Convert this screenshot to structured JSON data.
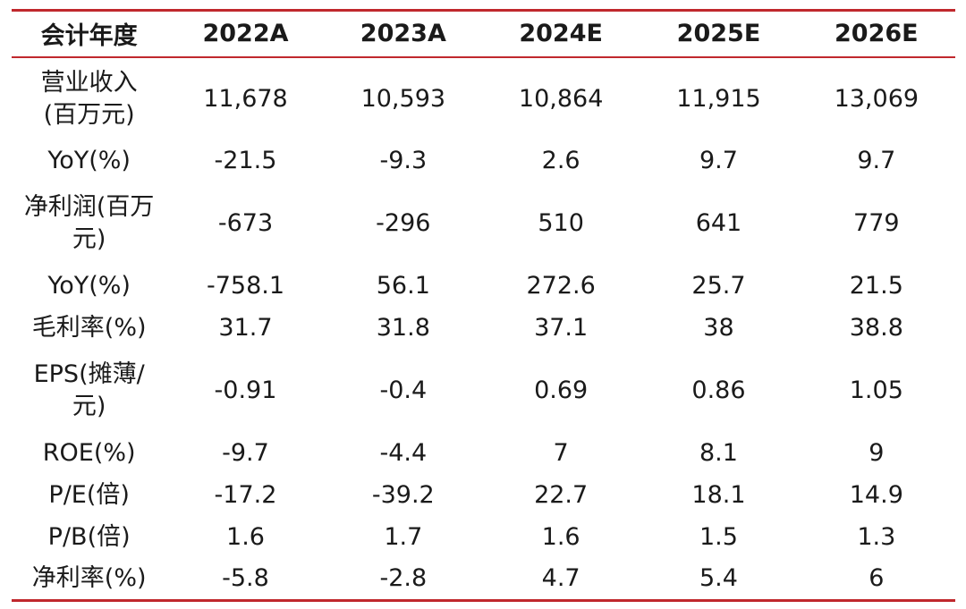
{
  "table": {
    "headers": [
      "会计年度",
      "2022A",
      "2023A",
      "2024E",
      "2025E",
      "2026E"
    ],
    "rows": [
      {
        "label": "营业收入(百万元)",
        "values": [
          "11,678",
          "10,593",
          "10,864",
          "11,915",
          "13,069"
        ]
      },
      {
        "label": "YoY(%)",
        "values": [
          "-21.5",
          "-9.3",
          "2.6",
          "9.7",
          "9.7"
        ]
      },
      {
        "label": "净利润(百万元)",
        "values": [
          "-673",
          "-296",
          "510",
          "641",
          "779"
        ]
      },
      {
        "label": "YoY(%)",
        "values": [
          "-758.1",
          "56.1",
          "272.6",
          "25.7",
          "21.5"
        ]
      },
      {
        "label": "毛利率(%)",
        "values": [
          "31.7",
          "31.8",
          "37.1",
          "38",
          "38.8"
        ]
      },
      {
        "label": "EPS(摊薄/元)",
        "values": [
          "-0.91",
          "-0.4",
          "0.69",
          "0.86",
          "1.05"
        ]
      },
      {
        "label": "ROE(%)",
        "values": [
          "-9.7",
          "-4.4",
          "7",
          "8.1",
          "9"
        ]
      },
      {
        "label": "P/E(倍)",
        "values": [
          "-17.2",
          "-39.2",
          "22.7",
          "18.1",
          "14.9"
        ]
      },
      {
        "label": "P/B(倍)",
        "values": [
          "1.6",
          "1.7",
          "1.6",
          "1.5",
          "1.3"
        ]
      },
      {
        "label": "净利率(%)",
        "values": [
          "-5.8",
          "-2.8",
          "4.7",
          "5.4",
          "6"
        ]
      }
    ]
  },
  "colors": {
    "rule": "#c0282d",
    "text": "#1a1a1a"
  }
}
